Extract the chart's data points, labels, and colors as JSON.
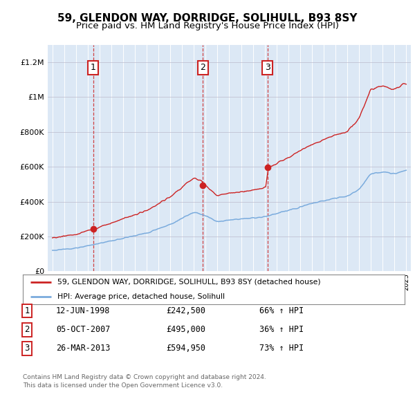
{
  "title": "59, GLENDON WAY, DORRIDGE, SOLIHULL, B93 8SY",
  "subtitle": "Price paid vs. HM Land Registry's House Price Index (HPI)",
  "bg_color": "#dce8f5",
  "hpi_color": "#7aabdd",
  "price_color": "#cc2222",
  "vline_color": "#cc2222",
  "yticks": [
    0,
    200000,
    400000,
    600000,
    800000,
    1000000,
    1200000
  ],
  "ytick_labels": [
    "£0",
    "£200K",
    "£400K",
    "£600K",
    "£800K",
    "£1M",
    "£1.2M"
  ],
  "sales": [
    {
      "date": 1998.45,
      "price": 242500,
      "label": "1"
    },
    {
      "date": 2007.76,
      "price": 495000,
      "label": "2"
    },
    {
      "date": 2013.23,
      "price": 594950,
      "label": "3"
    }
  ],
  "legend_line1": "59, GLENDON WAY, DORRIDGE, SOLIHULL, B93 8SY (detached house)",
  "legend_line2": "HPI: Average price, detached house, Solihull",
  "table_rows": [
    {
      "num": "1",
      "date": "12-JUN-1998",
      "price": "£242,500",
      "hpi": "66% ↑ HPI"
    },
    {
      "num": "2",
      "date": "05-OCT-2007",
      "price": "£495,000",
      "hpi": "36% ↑ HPI"
    },
    {
      "num": "3",
      "date": "26-MAR-2013",
      "price": "£594,950",
      "hpi": "73% ↑ HPI"
    }
  ],
  "footnote1": "Contains HM Land Registry data © Crown copyright and database right 2024.",
  "footnote2": "This data is licensed under the Open Government Licence v3.0.",
  "title_fontsize": 11,
  "subtitle_fontsize": 9.5
}
